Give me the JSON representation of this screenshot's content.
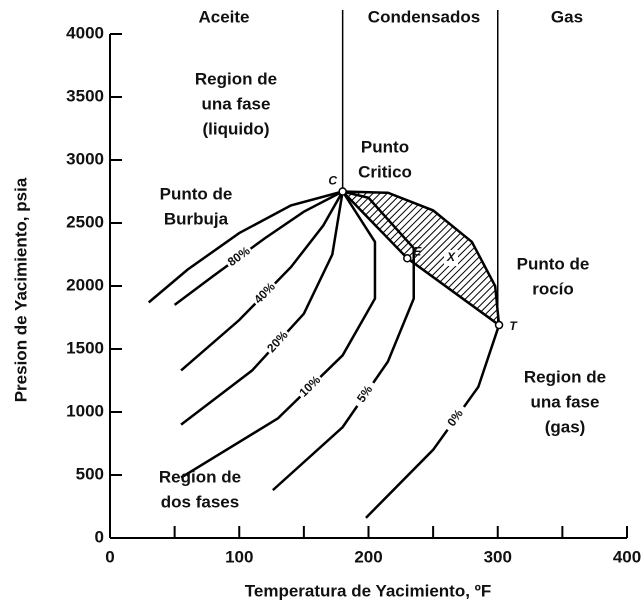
{
  "chart_data": {
    "type": "line",
    "xlabel": "Temperatura de Yacimiento, ºF",
    "ylabel": "Presion de Yacimiento, psia",
    "xlim": [
      0,
      400
    ],
    "ylim": [
      0,
      4000
    ],
    "xticks": [
      0,
      100,
      200,
      300,
      400
    ],
    "xminor": [
      50,
      150,
      250,
      350
    ],
    "yticks": [
      0,
      500,
      1000,
      1500,
      2000,
      2500,
      3000,
      3500,
      4000
    ],
    "zones": [
      "Aceite",
      "Condensados",
      "Gas"
    ],
    "boundaries": [
      180,
      300
    ],
    "series": [
      {
        "color": "#000000",
        "x": [
          30,
          60,
          100,
          140,
          180
        ],
        "values": [
          1870,
          2130,
          2420,
          2640,
          2750
        ]
      },
      {
        "name": "80%",
        "color": "#000000",
        "x": [
          50,
          80,
          120,
          150,
          180
        ],
        "values": [
          1850,
          2080,
          2380,
          2590,
          2750
        ]
      },
      {
        "name": "40%",
        "color": "#000000",
        "x": [
          55,
          100,
          140,
          165,
          180
        ],
        "values": [
          1330,
          1730,
          2150,
          2480,
          2750
        ]
      },
      {
        "name": "20%",
        "color": "#000000",
        "x": [
          55,
          110,
          150,
          172,
          180
        ],
        "values": [
          900,
          1330,
          1780,
          2250,
          2750
        ]
      },
      {
        "name": "10%",
        "color": "#000000",
        "x": [
          55,
          130,
          180,
          205,
          205,
          180
        ],
        "values": [
          480,
          950,
          1450,
          1900,
          2350,
          2750
        ]
      },
      {
        "name": "5%",
        "color": "#000000",
        "x": [
          126,
          180,
          215,
          235,
          235,
          200,
          180
        ],
        "values": [
          380,
          880,
          1400,
          1900,
          2300,
          2700,
          2750
        ]
      },
      {
        "name": "0%",
        "color": "#000000",
        "x": [
          198,
          250,
          285,
          301,
          298,
          280,
          250,
          215,
          180
        ],
        "values": [
          160,
          700,
          1200,
          1690,
          2000,
          2350,
          2600,
          2740,
          2750
        ]
      },
      {
        "color": "#000000",
        "x": [
          180,
          230,
          301
        ],
        "values": [
          2750,
          2220,
          1690
        ]
      }
    ],
    "points": [
      {
        "label": "C",
        "x": 180,
        "y": 2750
      },
      {
        "label": "E",
        "x": 230,
        "y": 2220
      },
      {
        "label": "T",
        "x": 301,
        "y": 1690
      }
    ],
    "region_label": "X",
    "annotations": [
      [
        "Region de",
        "una fase",
        "(liquido)"
      ],
      [
        "Punto",
        "Critico"
      ],
      [
        "Punto de",
        "Burbuja"
      ],
      [
        "Punto de",
        "rocío"
      ],
      [
        "Region de",
        "una fase",
        "(gas)"
      ],
      [
        "Region de",
        "dos fases"
      ]
    ]
  }
}
